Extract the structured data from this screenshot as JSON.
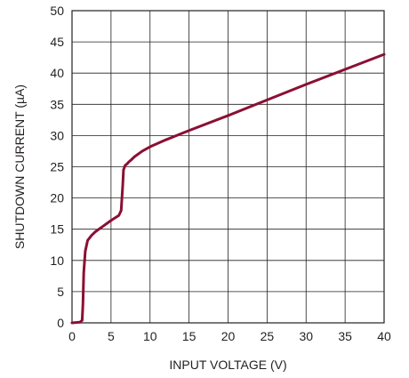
{
  "chart_data": {
    "type": "line",
    "title": "",
    "xlabel": "INPUT VOLTAGE (V)",
    "ylabel": "SHUTDOWN CURRENT (µA)",
    "xlim": [
      0,
      40
    ],
    "ylim": [
      0,
      50
    ],
    "x_ticks": [
      0,
      5,
      10,
      15,
      20,
      25,
      30,
      35,
      40
    ],
    "y_ticks": [
      0,
      5,
      10,
      15,
      20,
      25,
      30,
      35,
      40,
      45,
      50
    ],
    "x_tick_labels": [
      "0",
      "5",
      "10",
      "15",
      "20",
      "25",
      "30",
      "35",
      "40"
    ],
    "y_tick_labels": [
      "0",
      "5",
      "10",
      "15",
      "20",
      "25",
      "30",
      "35",
      "40",
      "45",
      "50"
    ],
    "grid": true,
    "line_color": "#8b0f33",
    "series": [
      {
        "x": [
          0,
          1.0,
          1.3,
          1.4,
          1.5,
          1.7,
          2.0,
          2.5,
          3.0,
          4.0,
          5.0,
          6.0,
          6.3,
          6.5,
          6.6,
          6.8,
          7.0,
          7.3,
          7.5,
          8.0,
          9.0,
          10.0,
          12.0,
          15.0,
          20.0,
          25.0,
          30.0,
          35.0,
          40.0
        ],
        "y": [
          0,
          0.1,
          0.4,
          3.0,
          8.0,
          11.5,
          13.2,
          14.0,
          14.6,
          15.5,
          16.4,
          17.2,
          18.0,
          22.0,
          24.5,
          25.2,
          25.4,
          25.8,
          26.0,
          26.6,
          27.5,
          28.2,
          29.3,
          30.8,
          33.2,
          35.7,
          38.2,
          40.6,
          43.0
        ]
      }
    ]
  }
}
